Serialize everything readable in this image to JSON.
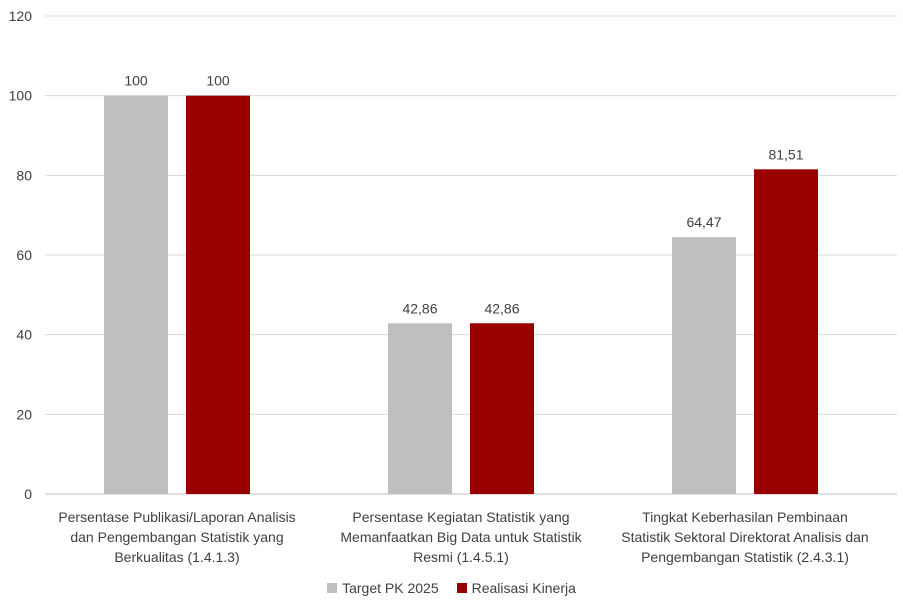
{
  "chart_data": {
    "type": "bar",
    "categories": [
      [
        "Persentase Publikasi/Laporan Analisis",
        "dan Pengembangan Statistik yang",
        "Berkualitas (1.4.1.3)"
      ],
      [
        "Persentase Kegiatan Statistik yang",
        "Memanfaatkan Big Data untuk Statistik",
        "Resmi (1.4.5.1)"
      ],
      [
        "Tingkat Keberhasilan Pembinaan",
        "Statistik Sektoral Direktorat Analisis dan",
        "Pengembangan Statistik (2.4.3.1)"
      ]
    ],
    "series": [
      {
        "name": "Target PK 2025",
        "color": "#bfbfbf",
        "values": [
          100,
          42.86,
          64.47
        ],
        "labels": [
          "100",
          "42,86",
          "64,47"
        ]
      },
      {
        "name": "Realisasi Kinerja",
        "color": "#990000",
        "values": [
          100,
          42.86,
          81.51
        ],
        "labels": [
          "100",
          "42,86",
          "81,51"
        ]
      }
    ],
    "ylim": [
      0,
      120
    ],
    "yticks": [
      0,
      20,
      40,
      60,
      80,
      100,
      120
    ],
    "grid": true,
    "gridColor": "#d9d9d9",
    "legend_position": "bottom-center",
    "title": "",
    "xlabel": "",
    "ylabel": ""
  }
}
